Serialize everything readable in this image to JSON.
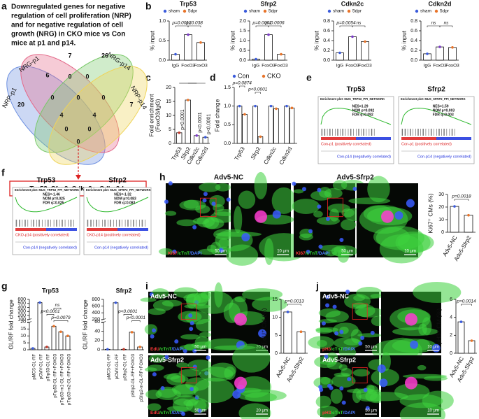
{
  "panel_labels": [
    "a",
    "b",
    "c",
    "d",
    "e",
    "f",
    "g",
    "h",
    "i",
    "j"
  ],
  "venn": {
    "title_lines": [
      "Downregulated genes for negative",
      "regulation of cell proliferation (NRP)",
      "and for negative regulation of cell",
      "growth (NRG) in CKO mice vs Con",
      "mice at p1 and p14."
    ],
    "sets": [
      "NRP-p1",
      "NRG-p1",
      "NRG-p14",
      "NRP-p14"
    ],
    "counts": [
      20,
      6,
      7,
      26,
      7,
      0,
      0,
      0,
      0,
      4,
      0,
      4,
      0,
      0,
      0
    ],
    "result": "Trp53, Sfrp2, Cdkn2c, Cdkn2d."
  },
  "gsea": [
    {
      "title": "Trp53",
      "plot_title": "Enrichment plot: MUS_TRP53_PPI_NETWORK",
      "stats": [
        "NES=1.29",
        "NOM p=0.092",
        "FDR q=0.092"
      ],
      "pos_label": "Con-p1 (positively correlated)",
      "neg_label": "Con-p14 (negatively correlated)"
    },
    {
      "title": "Sfrp2",
      "plot_title": "Enrichment plot: MUS_SFRP2_PPI_NETWORK",
      "stats": [
        "NES=1.59",
        "NOM p=0.003",
        "FDR q=0.003"
      ],
      "pos_label": "Con-p1 (positively correlated)",
      "neg_label": "Con-p14 (negatively correlated)"
    },
    {
      "title": "Trp53",
      "plot_title": "Enrichment plot: MUS_TRP53_PPI_NETWORK",
      "stats": [
        "NES=-1.46",
        "NOM p=0.025",
        "FDR q=0.025"
      ],
      "pos_label": "CKO-p14 (positively correlated)",
      "neg_label": "Con-p14 (negatively correlated)"
    },
    {
      "title": "Sfrp2",
      "plot_title": "Enrichment plot: MUS_SFRP2_PPI_NETWORK",
      "stats": [
        "NES=-1.32",
        "NOM p=0.083",
        "FDR q=0.083"
      ],
      "pos_label": "CKO-p14 (positively correlated)",
      "neg_label": "Con-p14 (negatively correlated)"
    }
  ],
  "micrographs": [
    {
      "title": "Adv5-NC",
      "stain": [
        "Ki67",
        "/cTnT",
        "/DAPI"
      ],
      "scales": [
        "50 μm",
        "10 μm"
      ]
    },
    {
      "title": "Adv5-Sfrp2",
      "stain": [
        "Ki67",
        "/cTnT",
        "/DAPI"
      ],
      "scales": [
        "50 μm",
        "10 μm"
      ]
    },
    {
      "title": "Adv5-NC",
      "stain": [
        "EdU",
        "/cTnT",
        "/DAPI"
      ],
      "scales": [
        "50 μm",
        "20 μm"
      ]
    },
    {
      "title": "Adv5-Sfrp2",
      "stain": [
        "EdU",
        "/cTnT",
        "/DAPI"
      ],
      "scales": [
        "50 μm",
        "20 μm"
      ]
    },
    {
      "title": "Adv5-NC",
      "stain": [
        "pH3",
        "/cTnT",
        "/DAPI"
      ],
      "scales": [
        "50 μm",
        "10 μm"
      ]
    },
    {
      "title": "Adv5-Sfrp2",
      "stain": [
        "pH3",
        "/cTnT",
        "/DAPI"
      ],
      "scales": [
        "50 μm",
        "10 μm"
      ]
    }
  ],
  "chart_data": [
    {
      "type": "bar",
      "title": "Trp53",
      "ylabel": "% input",
      "categories": [
        "IgG",
        "FoxO3",
        "FoxO3"
      ],
      "values": [
        0.15,
        0.65,
        0.45
      ],
      "colors": [
        "#3b5bdb",
        "#7d3cc8",
        "#e8742a"
      ],
      "legend": [
        {
          "name": "sham",
          "color": "#3b5bdb"
        },
        {
          "name": "5dpr",
          "color": "#e8742a"
        }
      ],
      "ylim": [
        0,
        1
      ],
      "yticks": [
        {
          "value": 0,
          "label": "0.0"
        },
        {
          "value": 0.5,
          "label": "0.5"
        },
        {
          "value": 1,
          "label": "1.0"
        }
      ],
      "annotations": [
        "p=0.0012",
        "p=0.038"
      ]
    },
    {
      "type": "bar",
      "title": "Sfrp2",
      "ylabel": "% input",
      "categories": [
        "IgG",
        "FoxO3",
        "FoxO3"
      ],
      "values": [
        0.05,
        1.3,
        0.3
      ],
      "colors": [
        "#3b5bdb",
        "#7d3cc8",
        "#e8742a"
      ],
      "legend": [
        {
          "name": "sham",
          "color": "#3b5bdb"
        },
        {
          "name": "5dpr",
          "color": "#e8742a"
        }
      ],
      "ylim": [
        0,
        2
      ],
      "yticks": [
        {
          "value": 0,
          "label": "0.0"
        },
        {
          "value": 0.5,
          "label": "0.5"
        },
        {
          "value": 1,
          "label": "1.0"
        },
        {
          "value": 1.5,
          "label": "1.5"
        },
        {
          "value": 2,
          "label": "2.0"
        }
      ],
      "annotations": [
        "p=0.0001",
        "p=0.0006"
      ]
    },
    {
      "type": "bar",
      "title": "Cdkn2c",
      "ylabel": "% input",
      "categories": [
        "IgG",
        "FoxO3",
        "FoxO3"
      ],
      "values": [
        0.15,
        0.48,
        0.38
      ],
      "colors": [
        "#3b5bdb",
        "#7d3cc8",
        "#e8742a"
      ],
      "legend": [
        {
          "name": "sham",
          "color": "#3b5bdb"
        },
        {
          "name": "5dpr",
          "color": "#e8742a"
        }
      ],
      "ylim": [
        0,
        0.8
      ],
      "yticks": [
        {
          "value": 0,
          "label": "0.0"
        },
        0.2,
        0.4,
        0.6,
        0.8
      ],
      "annotations": [
        "p=0.0054",
        "ns"
      ]
    },
    {
      "type": "bar",
      "title": "Cdkn2d",
      "ylabel": "% input",
      "categories": [
        "IgG",
        "FoxO3",
        "FoxO3"
      ],
      "values": [
        0.13,
        0.27,
        0.26
      ],
      "colors": [
        "#3b5bdb",
        "#7d3cc8",
        "#e8742a"
      ],
      "legend": [
        {
          "name": "sham",
          "color": "#3b5bdb"
        },
        {
          "name": "5dpr",
          "color": "#e8742a"
        }
      ],
      "ylim": [
        0,
        0.8
      ],
      "yticks": [
        {
          "value": 0,
          "label": "0.0"
        },
        0.2,
        0.4,
        0.6,
        0.8
      ],
      "annotations": [
        "ns",
        "ns"
      ]
    },
    {
      "type": "bar",
      "ylabel": [
        "Fold enrichment",
        "(FoxO3/IgG)"
      ],
      "categories": [
        "Trp53",
        "Sfrp2",
        "Cdkn2c",
        "Cdkn2d"
      ],
      "values": [
        3.8,
        15.5,
        2.8,
        2.2
      ],
      "colors": [
        "#c0392b",
        "#e8742a",
        "#7d3cc8",
        "#3b5bdb"
      ],
      "ylim": [
        0,
        20
      ],
      "yticks": [
        0,
        5,
        10,
        15,
        20
      ],
      "annotations": [
        "p<0.0001",
        "p<0.0001",
        "p<0.0001"
      ]
    },
    {
      "type": "grouped_bar",
      "ylabel": "Fold change",
      "categories": [
        "Trp53",
        "Sfrp2",
        "Cdkn2c",
        "Cdkn2d"
      ],
      "series": [
        {
          "name": "Con",
          "color": "#3b5bdb",
          "values": [
            1.0,
            1.0,
            1.0,
            1.0
          ]
        },
        {
          "name": "CKO",
          "color": "#e8742a",
          "values": [
            0.78,
            0.18,
            0.93,
            0.95
          ]
        }
      ],
      "ylim": [
        0,
        1.5
      ],
      "yticks": [
        {
          "value": 0,
          "label": "0.0"
        },
        {
          "value": 0.5,
          "label": "0.5"
        },
        {
          "value": 1,
          "label": "1.0"
        },
        {
          "value": 1.5,
          "label": "1.5"
        }
      ],
      "annotations": [
        "p=0.0874",
        "p<0.0001"
      ]
    },
    {
      "type": "bar",
      "title": "Trp53",
      "ylabel": "GL/RF fold change",
      "categories": [
        "pMCS-GL-RF",
        "pCMV-GL-RF",
        "pTrp53-GL-RF",
        "pTrp53-GL-RF+FOXO3",
        "pTrp53-m1-GL-RF+FOXO3",
        "pTrp53-m2-GL-RF+FOXO3"
      ],
      "values": [
        1,
        520,
        2,
        17,
        13,
        10
      ],
      "colors": [
        "#3b5bdb",
        "#3b5bdb",
        "#c0392b",
        "#e8742a",
        "#e8742a",
        "#e8742a"
      ],
      "ylim": [
        0,
        600
      ],
      "ybreak": [
        20,
        100
      ],
      "yticks": [
        0,
        5,
        10,
        15,
        20,
        100,
        200,
        300,
        400,
        500,
        600
      ],
      "annotations": [
        "p<0.0001",
        "p=0.0079",
        "ns"
      ]
    },
    {
      "type": "bar",
      "title": "Sfrp2",
      "ylabel": "GL/RF fold change",
      "categories": [
        "pMCS-GL-RF",
        "pCMV-GL-RF",
        "pSfrp2-GL-RF",
        "pSfrp2-GL-RF+FOXO3",
        "pSfrp2-m-GL-RF+FOXO3"
      ],
      "values": [
        1,
        700,
        1,
        38,
        6
      ],
      "colors": [
        "#3b5bdb",
        "#3b5bdb",
        "#c0392b",
        "#e8742a",
        "#e8742a"
      ],
      "ylim": [
        0,
        800
      ],
      "ybreak": [
        60,
        200
      ],
      "yticks": [
        0,
        20,
        40,
        60,
        200,
        400,
        600,
        800
      ],
      "annotations": [
        "p<0.0001",
        "p<0.0001"
      ]
    },
    {
      "type": "bar",
      "ylabel": "Ki67⁺ CMs (%)",
      "categories": [
        "Adv5-NC",
        "Adv5-Sfrp2"
      ],
      "values": [
        20.5,
        13.5
      ],
      "colors": [
        "#3b5bdb",
        "#e8742a"
      ],
      "ylim": [
        0,
        30
      ],
      "yticks": [
        0,
        10,
        20,
        30
      ],
      "annotations": [
        "p=0.0018"
      ]
    },
    {
      "type": "bar",
      "ylabel": "EdU⁺ CM (%)",
      "categories": [
        "Adv5-NC",
        "Adv5-Sfrp2"
      ],
      "values": [
        11.5,
        6.0
      ],
      "colors": [
        "#3b5bdb",
        "#e8742a"
      ],
      "ylim": [
        0,
        15
      ],
      "yticks": [
        0,
        5,
        10,
        15
      ],
      "annotations": [
        "p=0.0013"
      ]
    },
    {
      "type": "bar",
      "ylabel": "pH3⁺ CM (%)",
      "categories": [
        "Adv5-NC",
        "Adv5-Sfrp2"
      ],
      "values": [
        3.5,
        1.4
      ],
      "colors": [
        "#3b5bdb",
        "#e8742a"
      ],
      "ylim": [
        0,
        6
      ],
      "yticks": [
        0,
        2,
        4,
        6
      ],
      "annotations": [
        "p=0.0014"
      ]
    }
  ]
}
